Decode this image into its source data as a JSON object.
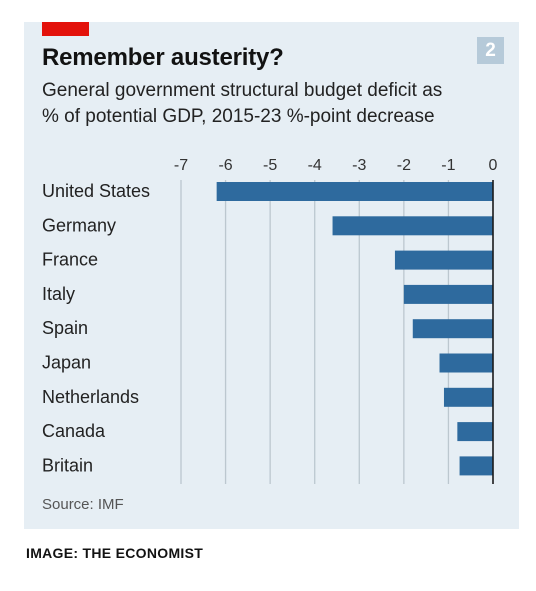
{
  "header": {
    "title": "Remember austerity?",
    "badge": "2",
    "subtitle_line1": "General government structural budget deficit as",
    "subtitle_line2": "% of potential GDP, 2015-23 %-point decrease"
  },
  "footer": {
    "source": "Source: IMF",
    "credit": "IMAGE: THE ECONOMIST"
  },
  "colors": {
    "bar": "#2e6a9e",
    "accent": "#e3120b",
    "background": "#e6eef4"
  },
  "chart_data": {
    "type": "bar",
    "orientation": "horizontal",
    "categories": [
      "United States",
      "Germany",
      "France",
      "Italy",
      "Spain",
      "Japan",
      "Netherlands",
      "Canada",
      "Britain"
    ],
    "values": [
      -6.2,
      -3.6,
      -2.2,
      -2.0,
      -1.8,
      -1.2,
      -1.1,
      -0.8,
      -0.75
    ],
    "xlim": [
      -7,
      0
    ],
    "xticks": [
      "-7",
      "-6",
      "-5",
      "-4",
      "-3",
      "-2",
      "-1",
      "0"
    ],
    "grid": true,
    "title": "Remember austerity?"
  }
}
